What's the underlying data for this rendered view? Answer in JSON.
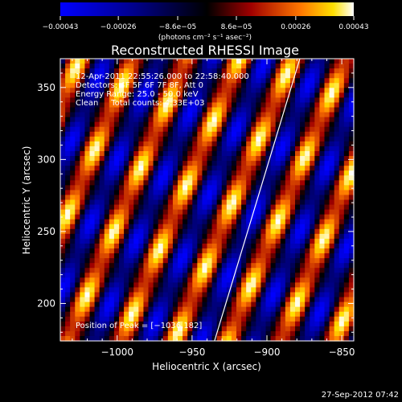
{
  "chart_data": {
    "type": "heatmap",
    "title": "Reconstructed RHESSI Image",
    "xlabel": "Heliocentric X (arcsec)",
    "ylabel": "Heliocentric Y (arcsec)",
    "xlim": [
      -1038,
      -842
    ],
    "ylim": [
      174,
      370
    ],
    "xticks": [
      -1000,
      -950,
      -900,
      -850
    ],
    "yticks": [
      200,
      250,
      300,
      350
    ],
    "xtick_labels": [
      "−1000",
      "−950",
      "−900",
      "−850"
    ],
    "ytick_labels": [
      "200",
      "250",
      "300",
      "350"
    ],
    "colorbar": {
      "range": [
        -0.00043,
        0.00043
      ],
      "ticks": [
        -0.00043,
        -0.00026,
        -8.6e-05,
        8.6e-05,
        0.00026,
        0.00043
      ],
      "tick_labels": [
        "−0.00043",
        "−0.00026",
        "−8.6e−05",
        "8.6e−05",
        "0.00026",
        "0.00043"
      ],
      "unit_label": "(photons cm⁻² s⁻¹ asec⁻²)"
    },
    "pattern": {
      "description_free": true,
      "stripe_angle_deg": 22,
      "stripe_period_arcsec": 33,
      "cross_period_arcsec": 48
    },
    "limb_line": {
      "x": [
        -935,
        -878
      ],
      "y": [
        174,
        370
      ]
    },
    "peak": {
      "x": -1036,
      "y": 182
    },
    "annotations": [
      "12-Apr-2011 22:55:26.000 to 22:58:40.000",
      "Detectors: 4F 5F 6F 7F 8F, Att 0",
      "Energy Range: 25.0 - 50.0 keV",
      "Clean     Total counts: 4.33E+03"
    ],
    "peak_label": "Position of Peak = [−1036,182]",
    "timestamp": "27-Sep-2012 07:42"
  }
}
